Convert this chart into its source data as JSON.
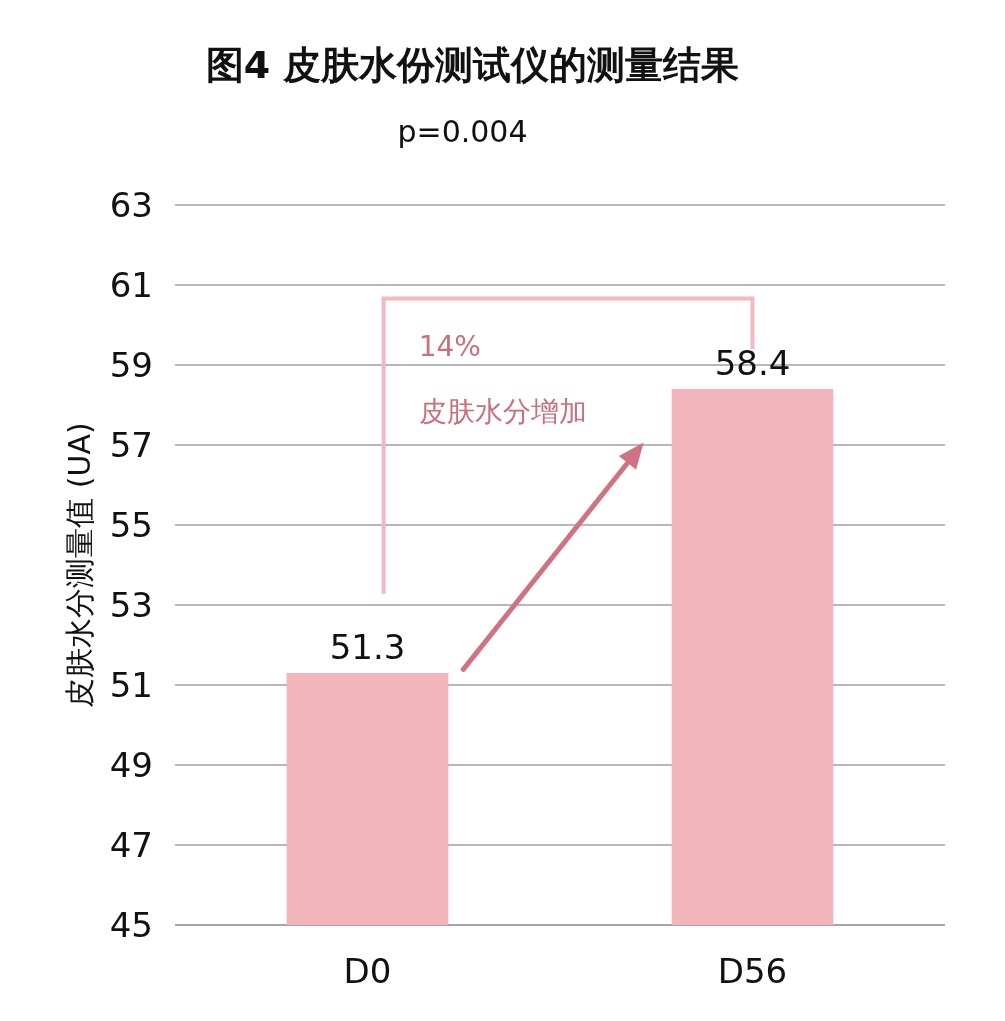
{
  "chart_data": {
    "type": "bar",
    "title": "图4 皮肤水份测试仪的测量结果",
    "subtitle": "p=0.004",
    "ylabel": "皮肤水分测量值 (UA)",
    "categories": [
      "D0",
      "D56"
    ],
    "values": [
      51.3,
      58.4
    ],
    "color": "#f2b5bc",
    "ylim": [
      45,
      63
    ],
    "yticks": [
      45,
      47,
      49,
      51,
      53,
      55,
      57,
      59,
      61,
      63
    ],
    "grid": "y",
    "data_labels": true,
    "annotations": [
      "14%",
      "皮肤水分增加"
    ]
  }
}
